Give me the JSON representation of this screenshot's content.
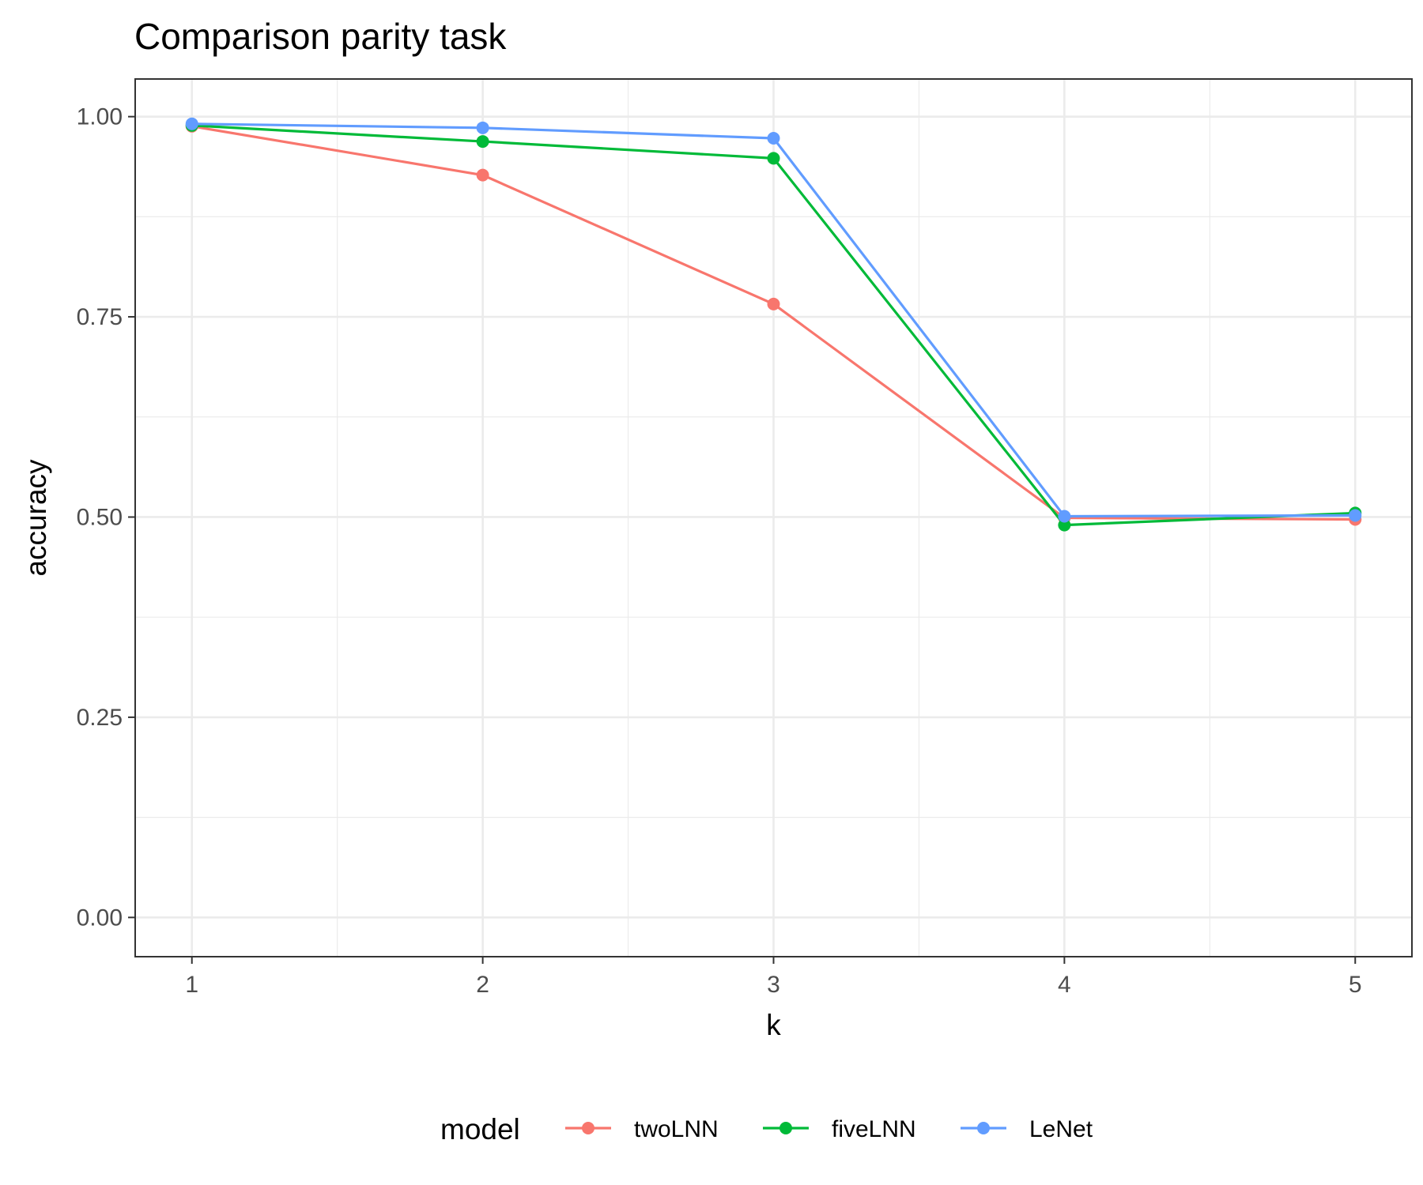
{
  "chart_data": {
    "type": "line",
    "title": "Comparison parity task",
    "xlabel": "k",
    "ylabel": "accuracy",
    "x": [
      1,
      2,
      3,
      4,
      5
    ],
    "x_ticks": [
      "1",
      "2",
      "3",
      "4",
      "5"
    ],
    "y_ticks": [
      "0.00",
      "0.25",
      "0.50",
      "0.75",
      "1.00"
    ],
    "y_tick_values": [
      0,
      0.25,
      0.5,
      0.75,
      1.0
    ],
    "xlim": [
      0.805,
      5.195
    ],
    "ylim": [
      -0.049,
      1.047
    ],
    "grid": true,
    "legend_title": "model",
    "legend_position": "bottom",
    "series": [
      {
        "name": "twoLNN",
        "color": "#F8766D",
        "values": [
          0.988,
          0.927,
          0.766,
          0.499,
          0.497
        ]
      },
      {
        "name": "fiveLNN",
        "color": "#00BA38",
        "values": [
          0.989,
          0.969,
          0.948,
          0.49,
          0.505
        ]
      },
      {
        "name": "LeNet",
        "color": "#619CFF",
        "values": [
          0.991,
          0.986,
          0.973,
          0.501,
          0.502
        ]
      }
    ]
  }
}
